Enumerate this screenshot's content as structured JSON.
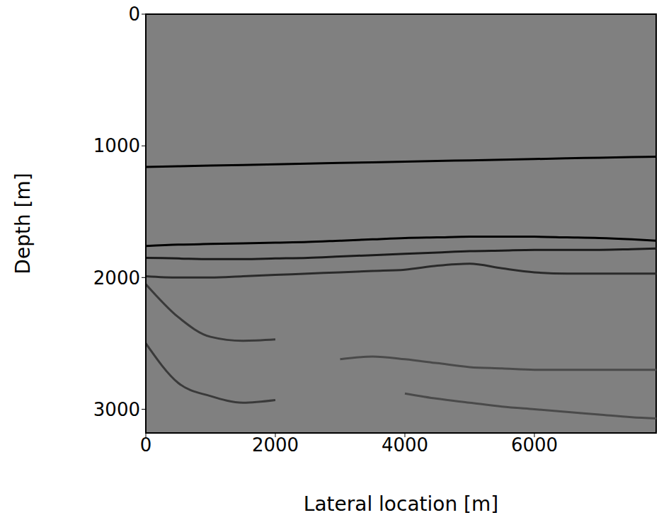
{
  "chart_data": {
    "type": "line",
    "x_label": "Lateral location [m]",
    "y_label": "Depth [m]",
    "xlim": [
      0,
      7880
    ],
    "ylim": [
      3180,
      0
    ],
    "xticks": [
      0,
      2000,
      4000,
      6000
    ],
    "yticks": [
      0,
      1000,
      2000,
      3000
    ],
    "grid": false,
    "x": [
      0,
      500,
      1000,
      1500,
      2000,
      2500,
      3000,
      3500,
      4000,
      4500,
      5000,
      5500,
      6000,
      6500,
      7000,
      7500,
      7880
    ],
    "series": [
      {
        "color": "#000000",
        "values": [
          1160,
          1155,
          1150,
          1145,
          1140,
          1135,
          1130,
          1125,
          1120,
          1115,
          1110,
          1105,
          1100,
          1095,
          1090,
          1085,
          1082
        ]
      },
      {
        "color": "#000000",
        "values": [
          1760,
          1750,
          1745,
          1740,
          1735,
          1730,
          1720,
          1710,
          1700,
          1695,
          1690,
          1690,
          1690,
          1695,
          1700,
          1710,
          1720
        ]
      },
      {
        "color": "#1a1a1a",
        "values": [
          1850,
          1855,
          1860,
          1860,
          1855,
          1850,
          1840,
          1830,
          1820,
          1810,
          1800,
          1795,
          1790,
          1790,
          1790,
          1785,
          1780
        ]
      },
      {
        "color": "#2a2a2a",
        "values": [
          1990,
          2000,
          2000,
          1990,
          1980,
          1970,
          1960,
          1950,
          1940,
          1910,
          1895,
          1930,
          1960,
          1970,
          1970,
          1970,
          1970
        ]
      },
      {
        "color": "#3a3a3a",
        "values": [
          2050,
          2300,
          2450,
          2480,
          2470,
          null,
          null,
          null,
          null,
          null,
          null,
          null,
          null,
          null,
          null,
          null,
          null
        ]
      },
      {
        "color": "#3a3a3a",
        "values": [
          2500,
          2800,
          2900,
          2950,
          2930,
          null,
          null,
          null,
          null,
          null,
          null,
          null,
          null,
          null,
          null,
          null,
          null
        ]
      },
      {
        "color": "#4a4a4a",
        "values": [
          null,
          null,
          null,
          null,
          null,
          null,
          2620,
          2600,
          2620,
          2650,
          2680,
          2690,
          2700,
          2700,
          2700,
          2700,
          2700
        ]
      },
      {
        "color": "#4a4a4a",
        "values": [
          null,
          null,
          null,
          null,
          null,
          null,
          null,
          null,
          2880,
          2920,
          2950,
          2980,
          3000,
          3020,
          3040,
          3060,
          3070
        ]
      }
    ]
  }
}
